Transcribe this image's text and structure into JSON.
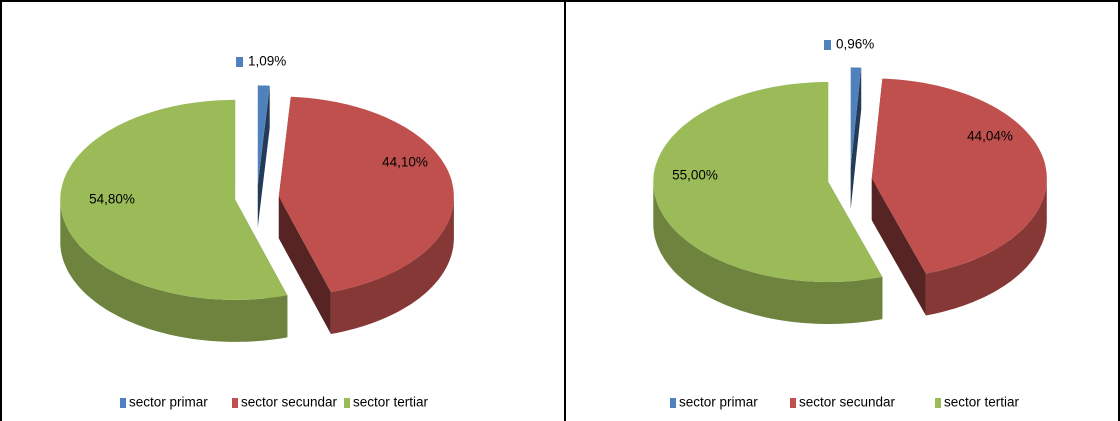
{
  "chart_data": [
    {
      "type": "pie",
      "categories": [
        "sector primar",
        "sector secundar",
        "sector tertiar"
      ],
      "values": [
        1.09,
        44.1,
        54.8
      ],
      "value_labels": [
        "1,09%",
        "44,10%",
        "54,80%"
      ],
      "colors": [
        "#4f81bd",
        "#c0504d",
        "#9bbb59"
      ]
    },
    {
      "type": "pie",
      "categories": [
        "sector primar",
        "sector secundar",
        "sector tertiar"
      ],
      "values": [
        0.96,
        44.04,
        55.0
      ],
      "value_labels": [
        "0,96%",
        "44,04%",
        "55,00%"
      ],
      "colors": [
        "#4f81bd",
        "#c0504d",
        "#9bbb59"
      ]
    }
  ]
}
